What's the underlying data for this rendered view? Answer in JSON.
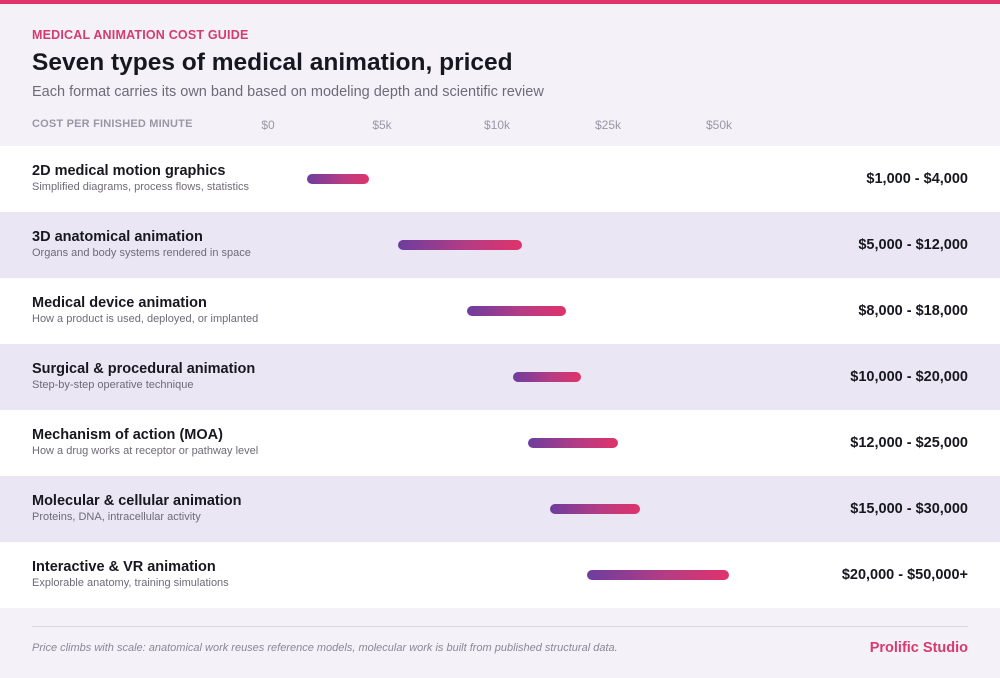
{
  "eyebrow": "MEDICAL ANIMATION COST GUIDE",
  "title": "Seven types of medical animation, priced",
  "subtitle": "Each format carries its own band based on modeling depth and scientific review",
  "brand": "Prolific Studio",
  "footnote": "Price climbs with scale: anatomical work reuses reference models, molecular work is built from published structural data.",
  "colors": {
    "accent": "#e0336b",
    "bar_start": "#6d3d9e",
    "bar_end": "#e0336b",
    "row_alt": "#ebe6f4"
  },
  "chart_data": {
    "type": "bar",
    "orientation": "horizontal-range",
    "xlabel": "COST PER FINISHED MINUTE",
    "ticks": [
      "$0",
      "$5k",
      "$10k",
      "$25k",
      "$50k"
    ],
    "tick_values": [
      0,
      5000,
      10000,
      25000,
      50000
    ],
    "scale": "piecewise-linear between ticks",
    "grid": false,
    "legend": "none",
    "rows": [
      {
        "name": "2D medical motion graphics",
        "description": "Simplified diagrams, process flows, statistics",
        "low": 1000,
        "high": 4000,
        "price_label": "$1,000 - $4,000"
      },
      {
        "name": "3D anatomical animation",
        "description": "Organs and body systems rendered in space",
        "low": 5000,
        "high": 12000,
        "price_label": "$5,000 - $12,000"
      },
      {
        "name": "Medical device animation",
        "description": "How a product is used, deployed, or implanted",
        "low": 8000,
        "high": 18000,
        "price_label": "$8,000 - $18,000"
      },
      {
        "name": "Surgical & procedural animation",
        "description": "Step-by-step operative technique",
        "low": 10000,
        "high": 20000,
        "price_label": "$10,000 - $20,000"
      },
      {
        "name": "Mechanism of action (MOA)",
        "description": "How a drug works at receptor or pathway level",
        "low": 12000,
        "high": 25000,
        "price_label": "$12,000 - $25,000"
      },
      {
        "name": "Molecular & cellular animation",
        "description": "Proteins, DNA, intracellular activity",
        "low": 15000,
        "high": 30000,
        "price_label": "$15,000 - $30,000"
      },
      {
        "name": "Interactive & VR animation",
        "description": "Explorable anatomy, training simulations",
        "low": 20000,
        "high": 50000,
        "price_label": "$20,000 - $50,000+"
      }
    ]
  }
}
